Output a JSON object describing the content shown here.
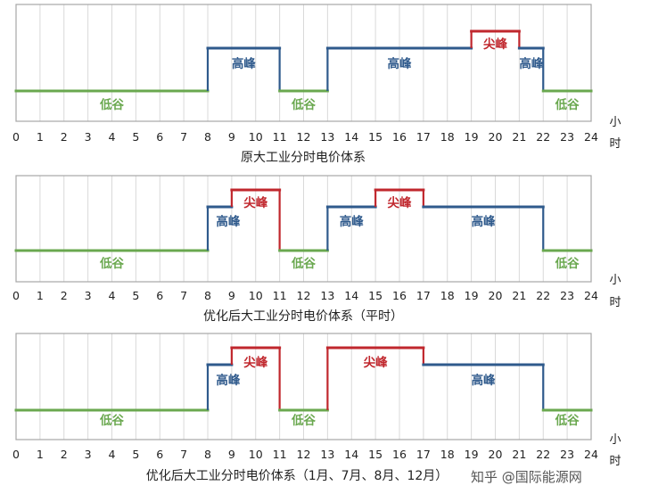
{
  "colors": {
    "valley": "#6aa84f",
    "high": "#2f5a8c",
    "peak": "#c0272d",
    "grid": "#d9d9d9",
    "frame": "#a6a6a6"
  },
  "watermark": "知乎 @国际能源网",
  "chart_data": [
    {
      "type": "line",
      "title": "原大工业分时电价体系",
      "unit_label": [
        "小",
        "时"
      ],
      "x_ticks": [
        "0",
        "1",
        "2",
        "3",
        "4",
        "5",
        "6",
        "7",
        "8",
        "9",
        "10",
        "11",
        "12",
        "13",
        "14",
        "15",
        "16",
        "17",
        "18",
        "19",
        "20",
        "21",
        "22",
        "23",
        "24"
      ],
      "xlim": [
        0,
        24
      ],
      "segments": [
        {
          "start": 0,
          "end": 8,
          "level": "valley"
        },
        {
          "start": 8,
          "end": 11,
          "level": "high"
        },
        {
          "start": 11,
          "end": 13,
          "level": "valley"
        },
        {
          "start": 13,
          "end": 19,
          "level": "high"
        },
        {
          "start": 19,
          "end": 21,
          "level": "peak"
        },
        {
          "start": 21,
          "end": 22,
          "level": "high"
        },
        {
          "start": 22,
          "end": 24,
          "level": "valley"
        }
      ],
      "labels": [
        {
          "text": "低谷",
          "at": 4,
          "level": "valley"
        },
        {
          "text": "高峰",
          "at": 9.5,
          "level": "high"
        },
        {
          "text": "低谷",
          "at": 12,
          "level": "valley"
        },
        {
          "text": "高峰",
          "at": 16,
          "level": "high"
        },
        {
          "text": "尖峰",
          "at": 20,
          "level": "peak"
        },
        {
          "text": "高峰",
          "at": 21.5,
          "level": "high"
        },
        {
          "text": "低谷",
          "at": 23,
          "level": "valley"
        }
      ]
    },
    {
      "type": "line",
      "title": "优化后大工业分时电价体系（平时）",
      "unit_label": [
        "小",
        "时"
      ],
      "x_ticks": [
        "0",
        "1",
        "2",
        "3",
        "4",
        "5",
        "6",
        "7",
        "8",
        "9",
        "10",
        "11",
        "12",
        "13",
        "14",
        "15",
        "16",
        "17",
        "18",
        "19",
        "20",
        "21",
        "22",
        "23",
        "24"
      ],
      "xlim": [
        0,
        24
      ],
      "segments": [
        {
          "start": 0,
          "end": 8,
          "level": "valley"
        },
        {
          "start": 8,
          "end": 9,
          "level": "high"
        },
        {
          "start": 9,
          "end": 11,
          "level": "peak"
        },
        {
          "start": 11,
          "end": 13,
          "level": "valley"
        },
        {
          "start": 13,
          "end": 15,
          "level": "high"
        },
        {
          "start": 15,
          "end": 17,
          "level": "peak"
        },
        {
          "start": 17,
          "end": 22,
          "level": "high"
        },
        {
          "start": 22,
          "end": 24,
          "level": "valley"
        }
      ],
      "labels": [
        {
          "text": "低谷",
          "at": 4,
          "level": "valley"
        },
        {
          "text": "高峰",
          "at": 8.85,
          "level": "high"
        },
        {
          "text": "尖峰",
          "at": 10,
          "level": "peak"
        },
        {
          "text": "低谷",
          "at": 12,
          "level": "valley"
        },
        {
          "text": "高峰",
          "at": 14,
          "level": "high"
        },
        {
          "text": "尖峰",
          "at": 16,
          "level": "peak"
        },
        {
          "text": "高峰",
          "at": 19.5,
          "level": "high"
        },
        {
          "text": "低谷",
          "at": 23,
          "level": "valley"
        }
      ]
    },
    {
      "type": "line",
      "title": "优化后大工业分时电价体系（1月、7月、8月、12月）",
      "unit_label": [
        "小",
        "时"
      ],
      "x_ticks": [
        "0",
        "1",
        "2",
        "3",
        "4",
        "5",
        "6",
        "7",
        "8",
        "9",
        "10",
        "11",
        "12",
        "13",
        "14",
        "15",
        "16",
        "17",
        "18",
        "19",
        "20",
        "21",
        "22",
        "23",
        "24"
      ],
      "xlim": [
        0,
        24
      ],
      "segments": [
        {
          "start": 0,
          "end": 8,
          "level": "valley"
        },
        {
          "start": 8,
          "end": 9,
          "level": "high"
        },
        {
          "start": 9,
          "end": 11,
          "level": "peak"
        },
        {
          "start": 11,
          "end": 13,
          "level": "valley"
        },
        {
          "start": 13,
          "end": 17,
          "level": "peak"
        },
        {
          "start": 17,
          "end": 22,
          "level": "high"
        },
        {
          "start": 22,
          "end": 24,
          "level": "valley"
        }
      ],
      "labels": [
        {
          "text": "低谷",
          "at": 4,
          "level": "valley"
        },
        {
          "text": "高峰",
          "at": 8.85,
          "level": "high"
        },
        {
          "text": "尖峰",
          "at": 10,
          "level": "peak"
        },
        {
          "text": "低谷",
          "at": 12,
          "level": "valley"
        },
        {
          "text": "尖峰",
          "at": 15,
          "level": "peak"
        },
        {
          "text": "高峰",
          "at": 19.5,
          "level": "high"
        },
        {
          "text": "低谷",
          "at": 23,
          "level": "valley"
        }
      ]
    }
  ]
}
